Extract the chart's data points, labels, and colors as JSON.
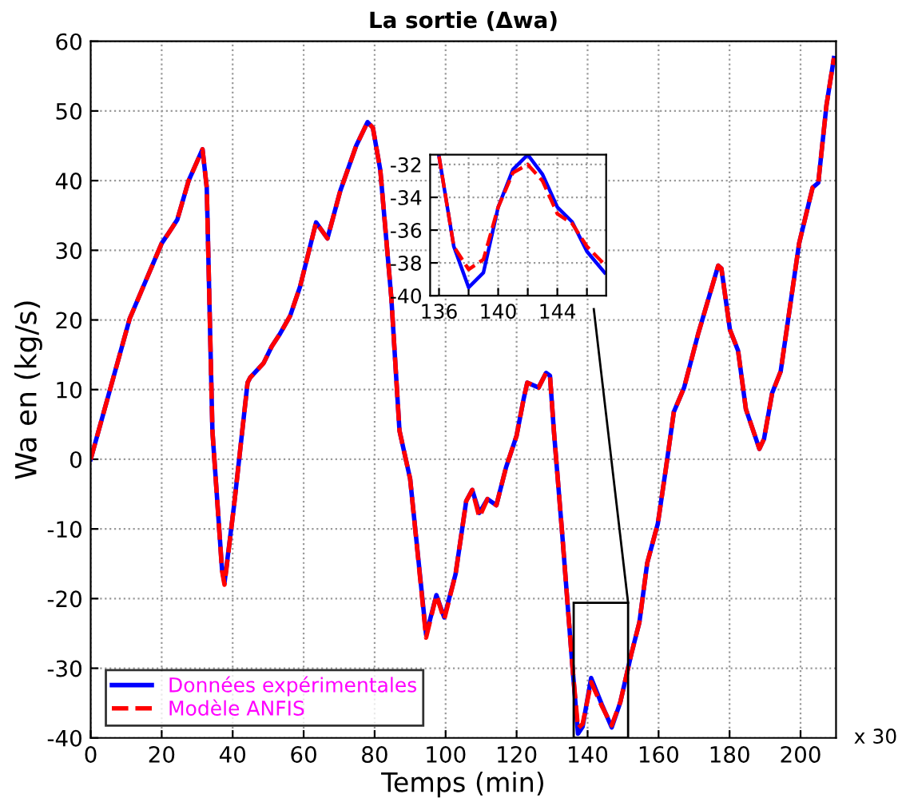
{
  "chart_data": [
    {
      "type": "line",
      "title": "La sortie (Δwa)",
      "xlabel": "Temps (min)",
      "ylabel": "Wa en (kg/s)",
      "annotations": [
        "x 30"
      ],
      "xlim": [
        0,
        210
      ],
      "xticks": [
        0,
        20,
        40,
        60,
        80,
        100,
        120,
        140,
        160,
        180,
        200
      ],
      "ylim": [
        -40,
        60
      ],
      "yticks": [
        -40,
        -30,
        -20,
        -10,
        0,
        10,
        20,
        30,
        40,
        50,
        60
      ],
      "grid": true,
      "legend": "bottom left",
      "series": [
        {
          "name": "Données expérimentales",
          "color": "#0000ff",
          "line_style": "solid",
          "x": [
            0,
            11,
            20,
            22,
            24.4,
            27.6,
            31.5,
            32.7,
            34.3,
            37,
            37.7,
            40.4,
            44.2,
            44.9,
            48.7,
            51,
            53.2,
            56.2,
            59,
            63.5,
            66.7,
            70.3,
            74.8,
            78,
            79.5,
            81.6,
            84.7,
            87,
            90,
            94.5,
            97.4,
            99.6,
            102.8,
            105.8,
            107.5,
            109.5,
            111.8,
            114.3,
            117,
            120,
            122,
            123,
            126.2,
            128.3,
            129.4,
            130.5,
            132.8,
            135.7,
            137.3,
            138.6,
            141,
            144,
            146.8,
            149.2,
            152.3,
            154.6,
            156.8,
            159.8,
            162.1,
            164.3,
            167.2,
            171.1,
            176.8,
            177.7,
            180.1,
            182.4,
            184.6,
            188.4,
            189.7,
            192,
            194.4,
            199.6,
            203.4,
            205,
            207.3,
            209.4
          ],
          "values": [
            0,
            20.2,
            31,
            32.5,
            34.4,
            40,
            44.5,
            39,
            4,
            -15.8,
            -17.7,
            -6.6,
            11,
            11.7,
            13.8,
            16.2,
            17.9,
            20.6,
            24.8,
            34,
            31.7,
            38.5,
            45,
            48.4,
            47.6,
            41.5,
            23.2,
            4.1,
            -2.8,
            -25.2,
            -19.5,
            -22.7,
            -16.5,
            -6,
            -4.4,
            -7.7,
            -5.7,
            -6.6,
            -1.2,
            3.4,
            8.7,
            11,
            10.3,
            12.4,
            12,
            4.1,
            -10.4,
            -29.6,
            -39.4,
            -38.4,
            -31.4,
            -35.2,
            -38.5,
            -34.9,
            -28,
            -23.4,
            -14.9,
            -9.2,
            -1.2,
            6.8,
            10.3,
            17.9,
            27.8,
            27.4,
            18.6,
            15.6,
            7.2,
            1.5,
            2.9,
            9.5,
            12.6,
            31,
            39,
            39.7,
            50.8,
            57.6
          ]
        },
        {
          "name": "Modèle ANFIS",
          "color": "#ff0000",
          "line_style": "dashed",
          "x": [
            0,
            11,
            20,
            22,
            24.4,
            27.6,
            31.5,
            32.7,
            34.3,
            37,
            37.7,
            40.4,
            44.2,
            44.9,
            48.7,
            51,
            53.2,
            56.2,
            59,
            63.5,
            66.7,
            70.3,
            74.8,
            78,
            79.5,
            81.6,
            84.7,
            87,
            90,
            94.5,
            97.4,
            99.6,
            102.8,
            105.8,
            107.5,
            109.5,
            111.8,
            114.3,
            117,
            120,
            122,
            123,
            126.2,
            128.3,
            129.4,
            130.5,
            132.8,
            135.7,
            137.3,
            138.6,
            141,
            144,
            146.8,
            149.2,
            152.3,
            154.6,
            156.8,
            159.8,
            162.1,
            164.3,
            167.2,
            171.1,
            176.8,
            177.7,
            180.1,
            182.4,
            184.6,
            188.4,
            189.7,
            192,
            194.4,
            199.6,
            203.4,
            205,
            207.3,
            209.4
          ],
          "values": [
            0,
            20.2,
            31,
            32.5,
            34.4,
            40,
            44.5,
            39,
            4,
            -16,
            -18,
            -6.6,
            11,
            11.7,
            13.8,
            16.2,
            17.9,
            20.6,
            24.8,
            34,
            31.7,
            38.5,
            45,
            48.4,
            47.6,
            41.5,
            23.2,
            4.1,
            -2.8,
            -25.6,
            -19.5,
            -23,
            -16.5,
            -6,
            -4.4,
            -8.3,
            -5.7,
            -6.6,
            -1.2,
            3.4,
            8.7,
            11,
            10.3,
            12.4,
            12,
            4.1,
            -10.4,
            -29.6,
            -38.6,
            -38,
            -32,
            -35.4,
            -38.2,
            -34.9,
            -28,
            -23.4,
            -14.9,
            -9.2,
            -1.2,
            6.8,
            10.3,
            17.9,
            27.8,
            27.4,
            18.6,
            15.6,
            7.2,
            1.5,
            2.9,
            9.5,
            12.6,
            31,
            39,
            39.7,
            50.8,
            57.6
          ]
        }
      ]
    },
    {
      "type": "line",
      "xlim": [
        135.4,
        147.3
      ],
      "xticks": [
        136,
        {
          "value": 138,
          "label": null
        },
        140,
        {
          "value": 142,
          "label": null
        },
        144,
        {
          "value": 146,
          "label": null
        }
      ],
      "ylim": [
        -40,
        -31.4
      ],
      "yticks": [
        -40,
        -38,
        -36,
        -34,
        -32
      ],
      "grid": true,
      "series": [
        {
          "color": "#0000ff",
          "line_style": "solid",
          "x": [
            136,
            137,
            138,
            139,
            140,
            141,
            142,
            143,
            144,
            145,
            146,
            147.2
          ],
          "values": [
            -31.5,
            -37,
            -39.5,
            -38.6,
            -34.6,
            -32.3,
            -31.4,
            -32.6,
            -34.6,
            -35.5,
            -37.3,
            -38.6
          ]
        },
        {
          "color": "#ff0000",
          "line_style": "dashed",
          "x": [
            136,
            137,
            138,
            139,
            140,
            141,
            142,
            143,
            144,
            145,
            146,
            147.2
          ],
          "values": [
            -31.5,
            -37,
            -38.4,
            -37.8,
            -34.6,
            -32.5,
            -32,
            -33,
            -35,
            -35.6,
            -37,
            -38.1
          ]
        }
      ]
    }
  ]
}
